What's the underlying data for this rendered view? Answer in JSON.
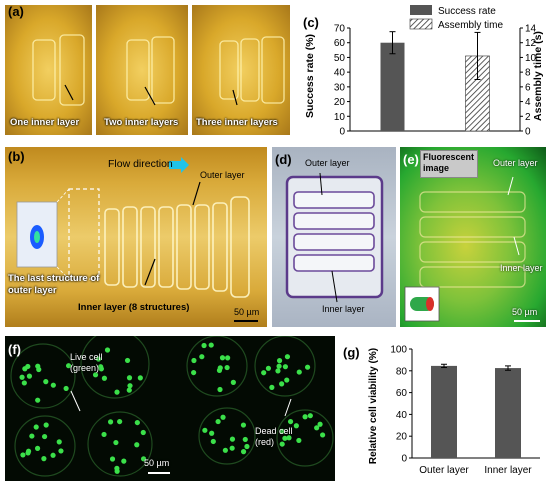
{
  "panel_letters": {
    "a": "(a)",
    "b": "(b)",
    "c": "(c)",
    "d": "(d)",
    "e": "(e)",
    "f": "(f)",
    "g": "(g)"
  },
  "panel_a": {
    "captions": [
      "One inner layer",
      "Two inner layers",
      "Three inner layers"
    ]
  },
  "panel_b": {
    "flow_direction": "Flow direction",
    "outer_layer": "Outer layer",
    "last_structure": "The last structure of outer layer",
    "inner_layer": "Inner layer (8 structures)",
    "scale_bar": "50 µm"
  },
  "panel_d": {
    "outer_layer": "Outer layer",
    "inner_layer": "Inner layer"
  },
  "panel_e": {
    "fluorescent_image": "Fluorescent image",
    "outer_layer": "Outer layer",
    "inner_layer": "Inner layer",
    "scale_bar": "50 µm"
  },
  "panel_f": {
    "live_cell": "Live cell (green)",
    "dead_cell": "Dead cell (red)",
    "scale_bar": "50 µm"
  },
  "chart_data": [
    {
      "panel": "c",
      "type": "bar",
      "categories": [
        "",
        ""
      ],
      "series": [
        {
          "name": "Success rate",
          "axis": "left",
          "values": [
            60,
            null
          ],
          "errors": [
            7.5,
            null
          ],
          "fill": "#555555"
        },
        {
          "name": "Assembly time",
          "axis": "right",
          "values": [
            null,
            10.2
          ],
          "errors": [
            null,
            3.2
          ],
          "fill": "hatched"
        }
      ],
      "ylabel": "Success rate (%)",
      "ylabel_right": "Assembly time (s)",
      "ylim": [
        0,
        70
      ],
      "ylim_right": [
        0,
        14
      ],
      "yticks": [
        0,
        10,
        20,
        30,
        40,
        50,
        60,
        70
      ],
      "yticks_right": [
        0,
        2,
        4,
        6,
        8,
        10,
        12,
        14
      ],
      "legend": "top-right"
    },
    {
      "panel": "g",
      "type": "bar",
      "categories": [
        "Outer layer",
        "Inner layer"
      ],
      "values": [
        84.5,
        82.5
      ],
      "errors": [
        1.5,
        2
      ],
      "ylabel": "Relative cell viability (%)",
      "ylim": [
        0,
        100
      ],
      "yticks": [
        0,
        20,
        40,
        60,
        80,
        100
      ],
      "fill": "#555555"
    }
  ]
}
